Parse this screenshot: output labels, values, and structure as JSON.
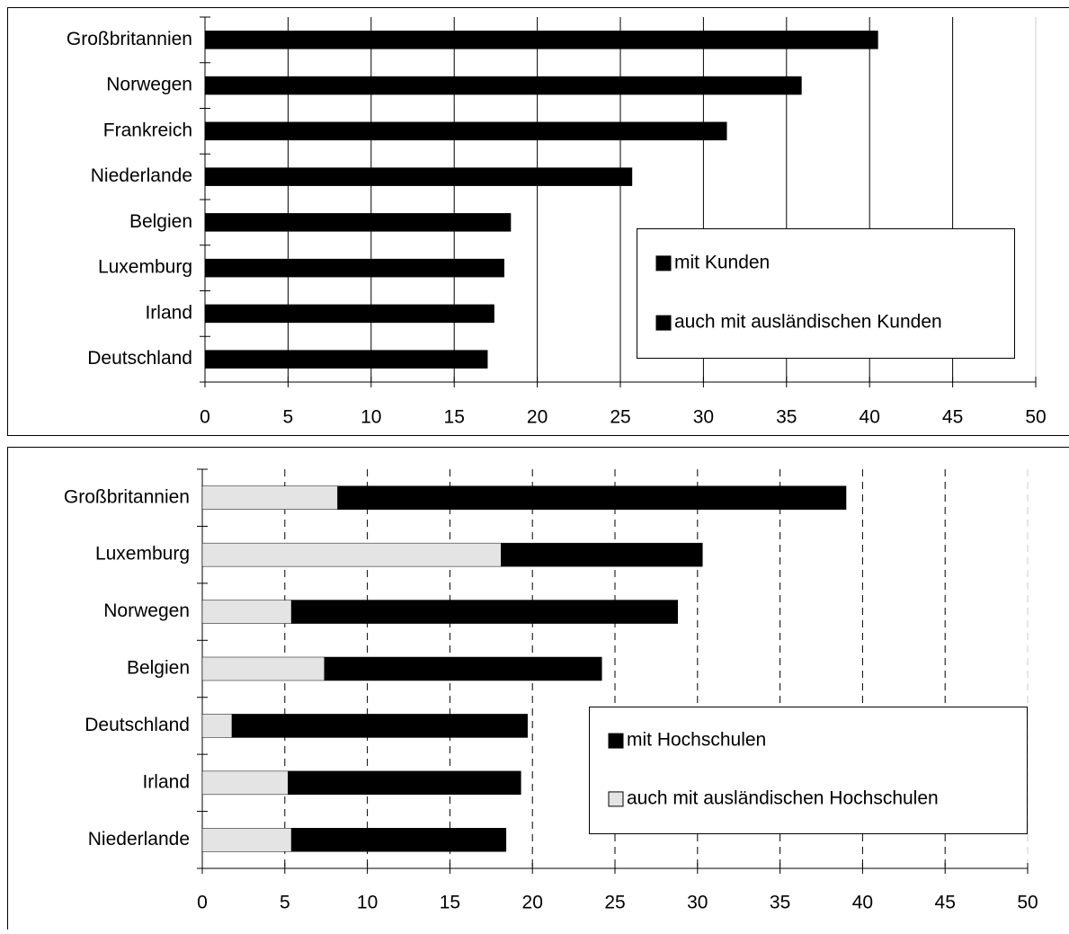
{
  "chart_data": [
    {
      "type": "bar",
      "grid": "solid",
      "categories": [
        "Großbritannien",
        "Norwegen",
        "Frankreich",
        "Niederlande",
        "Belgien",
        "Luxemburg",
        "Irland",
        "Deutschland"
      ],
      "series": [
        {
          "name": "mit Kunden",
          "color": "#000000",
          "values": [
            40.5,
            35.9,
            31.4,
            25.7,
            18.4,
            18.0,
            17.4,
            17.0
          ]
        },
        {
          "name": "auch mit ausländischen Kunden",
          "color": "#000000",
          "values": [
            null,
            null,
            null,
            null,
            null,
            null,
            null,
            null
          ]
        }
      ],
      "xlim": [
        0,
        50
      ],
      "xticks": [
        0,
        5,
        10,
        15,
        20,
        25,
        30,
        35,
        40,
        45,
        50
      ]
    },
    {
      "type": "bar",
      "grid": "dashed",
      "categories": [
        "Großbritannien",
        "Luxemburg",
        "Norwegen",
        "Belgien",
        "Deutschland",
        "Irland",
        "Niederlande"
      ],
      "series": [
        {
          "name": "mit Hochschulen",
          "color": "#000000",
          "values": [
            30.8,
            12.2,
            23.4,
            16.8,
            17.9,
            14.1,
            13.0
          ]
        },
        {
          "name": "auch mit ausländischen Hochschulen",
          "color": "#e4e4e4",
          "values": [
            8.2,
            18.1,
            5.4,
            7.4,
            1.8,
            5.2,
            5.4
          ]
        }
      ],
      "xlim": [
        0,
        50
      ],
      "xticks": [
        0,
        5,
        10,
        15,
        20,
        25,
        30,
        35,
        40,
        45,
        50
      ]
    }
  ]
}
